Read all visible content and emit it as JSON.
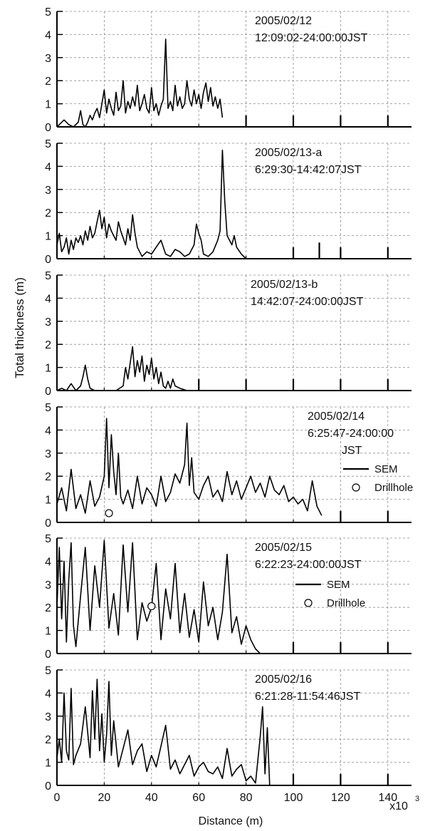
{
  "figure": {
    "ylabel": "Total thickness (m)",
    "xlabel": "Distance (m)",
    "x_multiplier_label": "x10",
    "x_multiplier_exp": "3"
  },
  "chart_data": [
    {
      "type": "line",
      "annotation": [
        "2005/02/12",
        "12:09:02-24:00:00JST"
      ],
      "xlim": [
        0,
        150
      ],
      "ylim": [
        0,
        5
      ],
      "x_ticks": [
        "0",
        "20",
        "40",
        "60",
        "80",
        "100",
        "120",
        "140"
      ],
      "y_ticks": [
        "0",
        "1",
        "2",
        "3",
        "4",
        "5"
      ],
      "grid": true,
      "series": [
        {
          "x": [
            0,
            3,
            5,
            7,
            9,
            10,
            11,
            12,
            13,
            14,
            15,
            16,
            17,
            18,
            19,
            20,
            21,
            22,
            23,
            24,
            25,
            26,
            27,
            28,
            29,
            30,
            31,
            32,
            33,
            34,
            35,
            36,
            37,
            38,
            39,
            40,
            41,
            42,
            43,
            44,
            45,
            46,
            47,
            48,
            49,
            50,
            51,
            52,
            53,
            54,
            55,
            56,
            57,
            58,
            59,
            60,
            61,
            62,
            63,
            64,
            65,
            66,
            67,
            68,
            69,
            70
          ],
          "y": [
            0,
            0.3,
            0.1,
            0,
            0.2,
            0.7,
            0.1,
            0,
            0.2,
            0.5,
            0.3,
            0.6,
            0.8,
            0.4,
            1.0,
            1.6,
            0.6,
            1.2,
            0.8,
            0.5,
            1.5,
            0.7,
            0.9,
            2.0,
            0.6,
            1.1,
            0.8,
            1.3,
            0.9,
            1.8,
            0.7,
            1.0,
            1.4,
            0.8,
            0.6,
            1.7,
            0.7,
            1.0,
            0.5,
            0.9,
            1.2,
            3.8,
            0.8,
            1.1,
            0.7,
            1.8,
            0.9,
            1.3,
            0.8,
            1.0,
            2.0,
            1.2,
            0.9,
            1.6,
            1.0,
            1.4,
            0.8,
            1.5,
            1.9,
            1.1,
            1.7,
            0.9,
            1.3,
            0.8,
            1.2,
            0.4
          ]
        }
      ],
      "markers": [
        {
          "x": 80,
          "y": 0.5
        },
        {
          "x": 100,
          "y": 0.5
        },
        {
          "x": 120,
          "y": 0.5
        },
        {
          "x": 140,
          "y": 0.5
        }
      ]
    },
    {
      "type": "line",
      "annotation": [
        "2005/02/13-a",
        "6:29:30-14:42:07JST"
      ],
      "xlim": [
        0,
        150
      ],
      "ylim": [
        0,
        5
      ],
      "x_ticks": [
        "0",
        "20",
        "40",
        "60",
        "80",
        "100",
        "120",
        "140"
      ],
      "y_ticks": [
        "0",
        "1",
        "2",
        "3",
        "4",
        "5"
      ],
      "grid": true,
      "series": [
        {
          "x": [
            0,
            1,
            2,
            3,
            4,
            5,
            6,
            7,
            8,
            9,
            10,
            11,
            12,
            13,
            14,
            15,
            16,
            17,
            18,
            19,
            20,
            21,
            22,
            23,
            24,
            25,
            26,
            27,
            28,
            29,
            30,
            31,
            32,
            33,
            34,
            35,
            36,
            38,
            40,
            42,
            44,
            46,
            48,
            50,
            52,
            54,
            56,
            58,
            59,
            60,
            61,
            62,
            64,
            66,
            68,
            69,
            70,
            71,
            72,
            73,
            74,
            75,
            76,
            78,
            80
          ],
          "y": [
            0.6,
            1.1,
            0.3,
            0.5,
            0.9,
            0.2,
            0.8,
            0.4,
            0.9,
            0.7,
            1.0,
            0.6,
            1.2,
            0.8,
            1.4,
            0.9,
            1.1,
            1.6,
            2.1,
            1.3,
            1.8,
            0.9,
            1.5,
            1.2,
            1.0,
            0.8,
            1.6,
            1.2,
            0.9,
            0.6,
            1.3,
            0.8,
            1.9,
            1.1,
            0.5,
            0.3,
            0.1,
            0.3,
            0.2,
            0.5,
            0.8,
            0.2,
            0.1,
            0.4,
            0.3,
            0.1,
            0.2,
            0.6,
            1.5,
            1.1,
            0.8,
            0.2,
            0.1,
            0.3,
            0.8,
            1.2,
            4.7,
            2.5,
            1.0,
            0.8,
            0.6,
            1.0,
            0.5,
            0.2,
            0
          ]
        }
      ],
      "markers": [
        {
          "x": 100,
          "y": 0.5
        },
        {
          "x": 111,
          "y": 0.7
        },
        {
          "x": 120,
          "y": 0.5
        },
        {
          "x": 140,
          "y": 0.5
        }
      ]
    },
    {
      "type": "line",
      "annotation": [
        "2005/02/13-b",
        "14:42:07-24:00:00JST"
      ],
      "xlim": [
        0,
        150
      ],
      "ylim": [
        0,
        5
      ],
      "x_ticks": [
        "0",
        "20",
        "40",
        "60",
        "80",
        "100",
        "120",
        "140"
      ],
      "y_ticks": [
        "0",
        "1",
        "2",
        "3",
        "4",
        "5"
      ],
      "grid": true,
      "series": [
        {
          "x": [
            0,
            2,
            4,
            6,
            8,
            10,
            11,
            12,
            13,
            14,
            16,
            20,
            25,
            28,
            29,
            30,
            31,
            32,
            33,
            34,
            35,
            36,
            37,
            38,
            39,
            40,
            41,
            42,
            43,
            44,
            45,
            46,
            47,
            48,
            49,
            50,
            52,
            55
          ],
          "y": [
            0,
            0.1,
            0,
            0.3,
            0,
            0.2,
            0.6,
            1.1,
            0.5,
            0.1,
            0,
            0,
            0,
            0.2,
            1.0,
            0.5,
            1.2,
            1.9,
            0.6,
            1.3,
            0.8,
            1.5,
            0.4,
            1.1,
            0.7,
            1.4,
            0.5,
            1.0,
            0.3,
            0.8,
            0.2,
            0.1,
            0.4,
            0.1,
            0.5,
            0.2,
            0.1,
            0
          ]
        }
      ],
      "markers": [
        {
          "x": 60,
          "y": 0.5
        },
        {
          "x": 80,
          "y": 0.5
        },
        {
          "x": 100,
          "y": 0.5
        },
        {
          "x": 120,
          "y": 0.5
        },
        {
          "x": 140,
          "y": 0.5
        }
      ]
    },
    {
      "type": "line",
      "annotation": [
        "2005/02/14",
        "6:25:47-24:00:00",
        "JST"
      ],
      "legend": [
        {
          "kind": "line",
          "label": "SEM"
        },
        {
          "kind": "circle",
          "label": "Drillhole"
        }
      ],
      "xlim": [
        0,
        150
      ],
      "ylim": [
        0,
        5
      ],
      "x_ticks": [
        "0",
        "20",
        "40",
        "60",
        "80",
        "100",
        "120",
        "140"
      ],
      "y_ticks": [
        "0",
        "1",
        "2",
        "3",
        "4",
        "5"
      ],
      "grid": true,
      "series": [
        {
          "x": [
            0,
            2,
            4,
            6,
            8,
            10,
            12,
            14,
            16,
            18,
            20,
            21,
            22,
            23,
            24,
            25,
            26,
            27,
            28,
            30,
            32,
            34,
            36,
            38,
            40,
            42,
            44,
            46,
            48,
            50,
            52,
            54,
            55,
            56,
            57,
            58,
            60,
            62,
            64,
            66,
            68,
            70,
            72,
            74,
            76,
            78,
            80,
            82,
            84,
            86,
            88,
            90,
            92,
            94,
            96,
            98,
            100,
            102,
            104,
            106,
            108,
            110,
            112
          ],
          "y": [
            0.8,
            1.5,
            0.5,
            2.3,
            0.6,
            1.2,
            0.4,
            1.8,
            0.7,
            1.1,
            2.0,
            4.5,
            1.5,
            3.8,
            2.2,
            1.2,
            3.0,
            1.1,
            0.8,
            1.4,
            0.6,
            2.0,
            0.8,
            1.5,
            1.2,
            0.7,
            2.0,
            0.9,
            1.3,
            2.1,
            1.7,
            2.5,
            4.3,
            1.6,
            2.8,
            1.3,
            1.0,
            1.6,
            2.0,
            1.1,
            1.4,
            0.9,
            2.2,
            1.2,
            1.8,
            1.0,
            1.5,
            2.0,
            1.3,
            1.7,
            1.1,
            2.0,
            1.4,
            1.2,
            1.6,
            0.9,
            1.1,
            0.8,
            1.0,
            0.5,
            1.8,
            0.7,
            0.3
          ]
        }
      ],
      "points": [
        {
          "x": 22,
          "y": 0.4,
          "series": "Drillhole"
        }
      ],
      "markers": [
        {
          "x": 120,
          "y": 0.5
        },
        {
          "x": 140,
          "y": 0.5
        }
      ]
    },
    {
      "type": "line",
      "annotation": [
        "2005/02/15",
        "6:22:23-24:00:00JST"
      ],
      "legend": [
        {
          "kind": "line",
          "label": "SEM"
        },
        {
          "kind": "circle",
          "label": "Drillhole"
        }
      ],
      "xlim": [
        0,
        150
      ],
      "ylim": [
        0,
        5
      ],
      "x_ticks": [
        "0",
        "20",
        "40",
        "60",
        "80",
        "100",
        "120",
        "140"
      ],
      "y_ticks": [
        "0",
        "1",
        "2",
        "3",
        "4",
        "5"
      ],
      "grid": true,
      "series": [
        {
          "x": [
            0,
            1,
            2,
            3,
            4,
            5,
            6,
            7,
            8,
            10,
            12,
            14,
            16,
            18,
            20,
            22,
            24,
            26,
            28,
            30,
            32,
            34,
            36,
            38,
            40,
            42,
            44,
            46,
            48,
            50,
            52,
            54,
            56,
            58,
            60,
            62,
            64,
            66,
            68,
            70,
            72,
            74,
            76,
            78,
            80,
            82,
            84,
            86
          ],
          "y": [
            2.0,
            4.6,
            1.5,
            4.0,
            0.5,
            3.2,
            4.8,
            1.2,
            0.3,
            2.5,
            4.6,
            1.0,
            3.8,
            2.0,
            4.9,
            1.1,
            2.6,
            0.8,
            4.7,
            1.8,
            4.8,
            0.6,
            2.2,
            1.4,
            2.0,
            3.9,
            0.6,
            2.8,
            1.5,
            3.9,
            0.9,
            2.6,
            0.7,
            1.9,
            0.5,
            3.1,
            1.2,
            2.0,
            0.6,
            1.8,
            4.3,
            0.9,
            1.6,
            0.4,
            1.2,
            0.6,
            0.2,
            0
          ]
        }
      ],
      "points": [
        {
          "x": 40,
          "y": 2.05,
          "series": "Drillhole"
        }
      ],
      "markers": [
        {
          "x": 100,
          "y": 0.5
        },
        {
          "x": 120,
          "y": 0.5
        },
        {
          "x": 140,
          "y": 0.5
        }
      ]
    },
    {
      "type": "line",
      "annotation": [
        "2005/02/16",
        "6:21:28-11:54:46JST"
      ],
      "xlim": [
        0,
        150
      ],
      "ylim": [
        0,
        5
      ],
      "x_ticks": [
        "0",
        "20",
        "40",
        "60",
        "80",
        "100",
        "120",
        "140"
      ],
      "y_ticks": [
        "0",
        "1",
        "2",
        "3",
        "4",
        "5"
      ],
      "grid": true,
      "series": [
        {
          "x": [
            0,
            1,
            2,
            3,
            4,
            5,
            6,
            7,
            8,
            10,
            12,
            14,
            15,
            16,
            17,
            18,
            19,
            20,
            21,
            22,
            23,
            24,
            26,
            28,
            30,
            32,
            34,
            36,
            38,
            40,
            42,
            44,
            46,
            48,
            50,
            52,
            54,
            56,
            58,
            60,
            62,
            64,
            66,
            68,
            70,
            72,
            74,
            76,
            78,
            80,
            82,
            84,
            86,
            87,
            88,
            89,
            90
          ],
          "y": [
            1.2,
            2.0,
            1.0,
            4.0,
            1.5,
            1.1,
            4.2,
            0.9,
            1.3,
            1.8,
            3.4,
            1.2,
            4.1,
            2.0,
            4.6,
            1.5,
            3.1,
            1.0,
            2.2,
            4.5,
            1.3,
            2.8,
            0.8,
            1.6,
            2.4,
            0.9,
            1.5,
            1.8,
            0.6,
            1.3,
            0.8,
            1.7,
            2.6,
            0.7,
            1.1,
            0.5,
            0.9,
            1.3,
            0.4,
            0.8,
            1.0,
            0.6,
            0.5,
            0.8,
            0.3,
            1.6,
            0.4,
            0.7,
            0.9,
            0.2,
            0.4,
            0.1,
            2.1,
            3.4,
            0.5,
            2.5,
            0
          ]
        }
      ],
      "markers": [
        {
          "x": 100,
          "y": 0.5
        },
        {
          "x": 120,
          "y": 0.5
        },
        {
          "x": 140,
          "y": 0.5
        }
      ]
    }
  ]
}
